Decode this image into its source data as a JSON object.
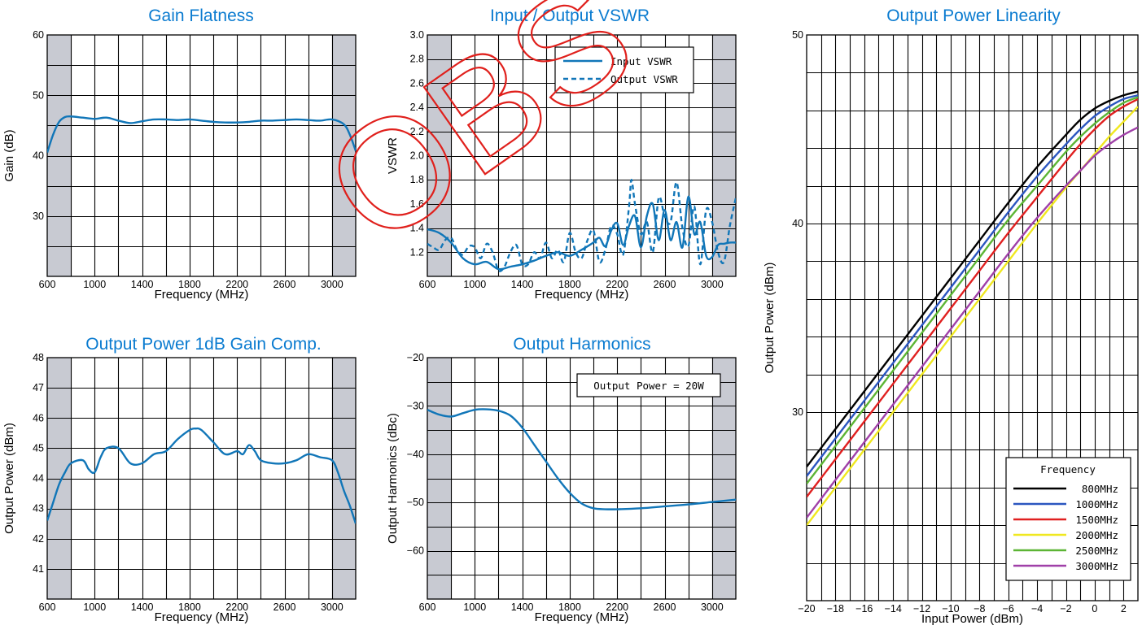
{
  "watermark": "OBS",
  "colors": {
    "title": "#0a7bd0",
    "curve": "#1176b8",
    "band": "#c8cad2"
  },
  "chart_data": [
    {
      "id": "gain",
      "type": "line",
      "title": "Gain Flatness",
      "xlabel": "Frequency (MHz)",
      "ylabel": "Gain (dB)",
      "xlim": [
        600,
        3200
      ],
      "ylim": [
        20,
        60
      ],
      "xticks": [
        600,
        1000,
        1400,
        1800,
        2200,
        2600,
        3000
      ],
      "yticks": [
        30,
        40,
        50,
        60
      ],
      "x_grid_step": 200,
      "y_grid_step": 5,
      "shaded_x": [
        [
          600,
          800
        ],
        [
          3000,
          3200
        ]
      ],
      "series": [
        {
          "color": "#1176b8",
          "dash": "",
          "x": [
            600,
            650,
            700,
            750,
            800,
            900,
            1000,
            1100,
            1200,
            1300,
            1400,
            1500,
            1600,
            1700,
            1800,
            1900,
            2000,
            2100,
            2200,
            2300,
            2400,
            2500,
            2600,
            2700,
            2800,
            2900,
            3000,
            3100,
            3150,
            3200
          ],
          "y": [
            40.5,
            43.5,
            45.6,
            46.4,
            46.5,
            46.3,
            46.1,
            46.3,
            45.8,
            45.4,
            45.7,
            46.0,
            46.0,
            45.9,
            46.0,
            45.8,
            45.6,
            45.5,
            45.5,
            45.6,
            45.8,
            45.8,
            45.9,
            46.0,
            45.9,
            45.8,
            46.0,
            45.2,
            43.5,
            40.8
          ]
        }
      ]
    },
    {
      "id": "vswr",
      "type": "line",
      "title": "Input / Output VSWR",
      "xlabel": "Frequency (MHz)",
      "ylabel": "VSWR",
      "xlim": [
        600,
        3200
      ],
      "ylim": [
        1.0,
        3.0
      ],
      "xticks": [
        600,
        1000,
        1400,
        1800,
        2200,
        2600,
        3000
      ],
      "yticks": [
        1.2,
        1.4,
        1.6,
        1.8,
        2.0,
        2.2,
        2.4,
        2.6,
        2.8,
        3.0
      ],
      "tick_decimals": 1,
      "x_grid_step": 200,
      "y_grid_step": 0.2,
      "shaded_x": [
        [
          600,
          800
        ],
        [
          3000,
          3200
        ]
      ],
      "legend": {
        "position": "top-right",
        "entries": [
          "Input VSWR",
          "Output VSWR"
        ]
      },
      "series": [
        {
          "name": "Input VSWR",
          "color": "#1176b8",
          "dash": "",
          "x": [
            600,
            700,
            800,
            900,
            1000,
            1100,
            1200,
            1300,
            1400,
            1500,
            1600,
            1700,
            1800,
            1900,
            2000,
            2050,
            2100,
            2150,
            2200,
            2250,
            2300,
            2350,
            2400,
            2450,
            2500,
            2550,
            2600,
            2650,
            2700,
            2750,
            2800,
            2850,
            2900,
            2950,
            3000,
            3050,
            3100,
            3150,
            3200
          ],
          "y": [
            1.39,
            1.36,
            1.28,
            1.15,
            1.1,
            1.12,
            1.06,
            1.08,
            1.1,
            1.13,
            1.17,
            1.2,
            1.17,
            1.22,
            1.28,
            1.32,
            1.25,
            1.38,
            1.44,
            1.26,
            1.42,
            1.5,
            1.24,
            1.5,
            1.6,
            1.3,
            1.55,
            1.3,
            1.45,
            1.24,
            1.66,
            1.35,
            1.45,
            1.17,
            1.16,
            1.26,
            1.27,
            1.28,
            1.28
          ]
        },
        {
          "name": "Output VSWR",
          "color": "#1176b8",
          "dash": "6,4",
          "x": [
            600,
            650,
            700,
            750,
            800,
            850,
            900,
            950,
            1000,
            1050,
            1100,
            1150,
            1200,
            1250,
            1300,
            1350,
            1400,
            1450,
            1500,
            1550,
            1600,
            1650,
            1700,
            1750,
            1800,
            1850,
            1900,
            1950,
            2000,
            2050,
            2100,
            2150,
            2200,
            2250,
            2300,
            2320,
            2350,
            2400,
            2450,
            2500,
            2550,
            2600,
            2650,
            2700,
            2750,
            2800,
            2850,
            2900,
            2950,
            3000,
            3050,
            3100,
            3150,
            3200
          ],
          "y": [
            1.27,
            1.24,
            1.22,
            1.3,
            1.32,
            1.22,
            1.18,
            1.25,
            1.24,
            1.15,
            1.27,
            1.2,
            1.05,
            1.08,
            1.2,
            1.26,
            1.1,
            1.1,
            1.2,
            1.15,
            1.28,
            1.15,
            1.22,
            1.12,
            1.36,
            1.2,
            1.15,
            1.3,
            1.38,
            1.12,
            1.22,
            1.42,
            1.35,
            1.18,
            1.58,
            1.8,
            1.6,
            1.35,
            1.45,
            1.2,
            1.65,
            1.5,
            1.45,
            1.78,
            1.4,
            1.25,
            1.58,
            1.1,
            1.55,
            1.45,
            1.2,
            1.12,
            1.42,
            1.65
          ]
        }
      ]
    },
    {
      "id": "p1db",
      "type": "line",
      "title": "Output Power 1dB Gain Comp.",
      "xlabel": "Frequency (MHz)",
      "ylabel": "Output Power (dBm)",
      "xlim": [
        600,
        3200
      ],
      "ylim": [
        40,
        48
      ],
      "xticks": [
        600,
        1000,
        1400,
        1800,
        2200,
        2600,
        3000
      ],
      "yticks": [
        41,
        42,
        43,
        44,
        45,
        46,
        47,
        48
      ],
      "x_grid_step": 200,
      "y_grid_step": 1,
      "shaded_x": [
        [
          600,
          800
        ],
        [
          3000,
          3200
        ]
      ],
      "series": [
        {
          "color": "#1176b8",
          "dash": "",
          "x": [
            600,
            650,
            700,
            750,
            800,
            900,
            950,
            1000,
            1050,
            1100,
            1200,
            1300,
            1400,
            1500,
            1600,
            1700,
            1800,
            1850,
            1900,
            2000,
            2100,
            2200,
            2250,
            2300,
            2350,
            2400,
            2500,
            2600,
            2700,
            2800,
            2900,
            3000,
            3050,
            3100,
            3150,
            3200
          ],
          "y": [
            42.6,
            43.2,
            43.8,
            44.2,
            44.5,
            44.6,
            44.3,
            44.2,
            44.7,
            45.0,
            45.0,
            44.5,
            44.5,
            44.8,
            44.9,
            45.3,
            45.6,
            45.65,
            45.6,
            45.2,
            44.8,
            44.9,
            44.8,
            45.1,
            44.9,
            44.6,
            44.5,
            44.5,
            44.6,
            44.8,
            44.7,
            44.6,
            44.2,
            43.6,
            43.1,
            42.5
          ]
        }
      ]
    },
    {
      "id": "harm",
      "type": "line",
      "title": "Output Harmonics",
      "xlabel": "Frequency (MHz)",
      "ylabel": "Output Harmonics (dBc)",
      "xlim": [
        600,
        3200
      ],
      "ylim": [
        -70,
        -20
      ],
      "xticks": [
        600,
        1000,
        1400,
        1800,
        2200,
        2600,
        3000
      ],
      "yticks": [
        -60,
        -50,
        -40,
        -30,
        -20
      ],
      "x_grid_step": 200,
      "y_grid_step": 5,
      "shaded_x": [
        [
          600,
          800
        ],
        [
          3000,
          3200
        ]
      ],
      "annotation": "Output Power = 20W",
      "series": [
        {
          "color": "#1176b8",
          "dash": "",
          "x": [
            600,
            700,
            800,
            900,
            1000,
            1100,
            1200,
            1300,
            1400,
            1500,
            1600,
            1700,
            1800,
            1900,
            2000,
            2100,
            2200,
            2400,
            2600,
            2800,
            3000,
            3200
          ],
          "y": [
            -30.8,
            -31.8,
            -32.2,
            -31.5,
            -30.8,
            -30.7,
            -31.0,
            -32.0,
            -34.5,
            -38.0,
            -41.5,
            -45.0,
            -48.0,
            -50.2,
            -51.2,
            -51.4,
            -51.4,
            -51.2,
            -50.8,
            -50.4,
            -49.9,
            -49.4
          ]
        }
      ]
    },
    {
      "id": "lin",
      "type": "line",
      "title": "Output Power Linearity",
      "xlabel": "Input Power (dBm)",
      "ylabel": "Output Power (dBm)",
      "xlim": [
        -20,
        3
      ],
      "ylim": [
        20,
        50
      ],
      "xticks": [
        -20,
        -18,
        -16,
        -14,
        -12,
        -10,
        -8,
        -6,
        -4,
        -2,
        0,
        2
      ],
      "yticks": [
        30,
        40,
        50
      ],
      "x_grid_step": 1,
      "y_grid_step": 2,
      "legend": {
        "position": "bottom-right",
        "title": "Frequency",
        "entries": [
          "800MHz",
          "1000MHz",
          "1500MHz",
          "2000MHz",
          "2500MHz",
          "3000MHz"
        ]
      },
      "series": [
        {
          "name": "800MHz",
          "color": "#000000",
          "dash": "",
          "x": [
            -20,
            -18,
            -16,
            -14,
            -12,
            -10,
            -8,
            -6,
            -4,
            -2,
            -1,
            0,
            1,
            2,
            3
          ],
          "y": [
            27.1,
            29.1,
            31.1,
            33.1,
            35.1,
            37.1,
            39.1,
            41.1,
            43.0,
            44.7,
            45.5,
            46.1,
            46.5,
            46.8,
            47.0
          ]
        },
        {
          "name": "1000MHz",
          "color": "#2b56c0",
          "dash": "",
          "x": [
            -20,
            -18,
            -16,
            -14,
            -12,
            -10,
            -8,
            -6,
            -4,
            -2,
            -1,
            0,
            1,
            2,
            3
          ],
          "y": [
            26.6,
            28.6,
            30.6,
            32.6,
            34.6,
            36.6,
            38.6,
            40.6,
            42.5,
            44.2,
            45.0,
            45.7,
            46.2,
            46.6,
            46.8
          ]
        },
        {
          "name": "1500MHz",
          "color": "#e02020",
          "dash": "",
          "x": [
            -20,
            -18,
            -16,
            -14,
            -12,
            -10,
            -8,
            -6,
            -4,
            -2,
            -1,
            0,
            1,
            2,
            3
          ],
          "y": [
            25.5,
            27.5,
            29.5,
            31.5,
            33.5,
            35.5,
            37.5,
            39.5,
            41.4,
            43.3,
            44.2,
            45.0,
            45.7,
            46.2,
            46.6
          ]
        },
        {
          "name": "2000MHz",
          "color": "#f0e820",
          "dash": "",
          "x": [
            -20,
            -18,
            -16,
            -14,
            -12,
            -10,
            -8,
            -6,
            -4,
            -2,
            -1,
            0,
            1,
            2,
            3
          ],
          "y": [
            24.0,
            26.0,
            28.0,
            30.0,
            32.0,
            34.0,
            36.0,
            38.0,
            40.0,
            41.9,
            42.8,
            43.7,
            44.6,
            45.4,
            46.2
          ]
        },
        {
          "name": "2500MHz",
          "color": "#5cb535",
          "dash": "",
          "x": [
            -20,
            -18,
            -16,
            -14,
            -12,
            -10,
            -8,
            -6,
            -4,
            -2,
            -1,
            0,
            1,
            2,
            3
          ],
          "y": [
            26.2,
            28.2,
            30.2,
            32.2,
            34.2,
            36.2,
            38.2,
            40.2,
            42.0,
            43.8,
            44.6,
            45.3,
            45.9,
            46.4,
            46.7
          ]
        },
        {
          "name": "3000MHz",
          "color": "#a040a8",
          "dash": "",
          "x": [
            -20,
            -18,
            -16,
            -14,
            -12,
            -10,
            -8,
            -6,
            -4,
            -2,
            -1,
            0,
            1,
            2,
            3
          ],
          "y": [
            24.4,
            26.4,
            28.4,
            30.4,
            32.4,
            34.4,
            36.4,
            38.4,
            40.3,
            42.0,
            42.8,
            43.6,
            44.2,
            44.7,
            45.1
          ]
        }
      ]
    }
  ]
}
